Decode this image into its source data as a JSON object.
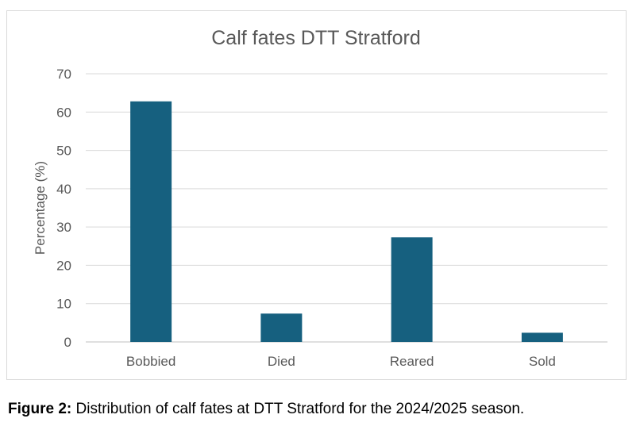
{
  "chart_data": {
    "type": "bar",
    "title": "Calf fates DTT Stratford",
    "xlabel": "",
    "ylabel": "Percentage (%)",
    "categories": [
      "Bobbied",
      "Died",
      "Reared",
      "Sold"
    ],
    "values": [
      62.8,
      7.4,
      27.3,
      2.4
    ],
    "ylim": [
      0,
      70
    ],
    "yticks": [
      0,
      10,
      20,
      30,
      40,
      50,
      60,
      70
    ],
    "grid": true,
    "bar_color": "#16607f",
    "grid_color": "#d9d9d9"
  },
  "caption": {
    "label": "Figure 2:",
    "text": " Distribution of calf fates at DTT Stratford for the 2024/2025 season."
  }
}
